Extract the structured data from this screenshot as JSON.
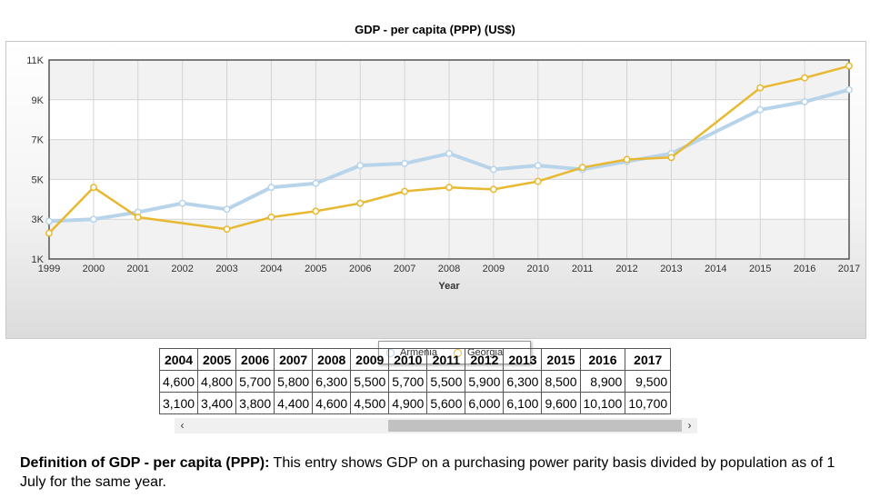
{
  "chart_data": {
    "type": "line",
    "title": "GDP - per capita (PPP) (US$)",
    "xlabel": "Year",
    "ylabel": "",
    "x": [
      1999,
      2000,
      2001,
      2002,
      2003,
      2004,
      2005,
      2006,
      2007,
      2008,
      2009,
      2010,
      2011,
      2012,
      2013,
      2014,
      2015,
      2016,
      2017
    ],
    "y_ticks": [
      {
        "value": 1000,
        "label": "1K"
      },
      {
        "value": 3000,
        "label": "3K"
      },
      {
        "value": 5000,
        "label": "5K"
      },
      {
        "value": 7000,
        "label": "7K"
      },
      {
        "value": 9000,
        "label": "9K"
      },
      {
        "value": 11000,
        "label": "11K"
      }
    ],
    "ylim": [
      1000,
      11000
    ],
    "grid": true,
    "legend": "bottom-center",
    "series": [
      {
        "name": "Armenia",
        "color": "#b8d4ea",
        "points": [
          [
            1999,
            2900
          ],
          [
            2000,
            3000
          ],
          [
            2001,
            3350
          ],
          [
            2002,
            3800
          ],
          [
            2003,
            3500
          ],
          [
            2004,
            4600
          ],
          [
            2005,
            4800
          ],
          [
            2006,
            5700
          ],
          [
            2007,
            5800
          ],
          [
            2008,
            6300
          ],
          [
            2009,
            5500
          ],
          [
            2010,
            5700
          ],
          [
            2011,
            5500
          ],
          [
            2012,
            5900
          ],
          [
            2013,
            6300
          ],
          [
            2015,
            8500
          ],
          [
            2016,
            8900
          ],
          [
            2017,
            9500
          ]
        ]
      },
      {
        "name": "Georgia",
        "color": "#e8b830",
        "points": [
          [
            1999,
            2300
          ],
          [
            2000,
            4600
          ],
          [
            2001,
            3100
          ],
          [
            2003,
            2500
          ],
          [
            2004,
            3100
          ],
          [
            2005,
            3400
          ],
          [
            2006,
            3800
          ],
          [
            2007,
            4400
          ],
          [
            2008,
            4600
          ],
          [
            2009,
            4500
          ],
          [
            2010,
            4900
          ],
          [
            2011,
            5600
          ],
          [
            2012,
            6000
          ],
          [
            2013,
            6100
          ],
          [
            2015,
            9600
          ],
          [
            2016,
            10100
          ],
          [
            2017,
            10700
          ]
        ]
      }
    ]
  },
  "table": {
    "headers": [
      "2004",
      "2005",
      "2006",
      "2007",
      "2008",
      "2009",
      "2010",
      "2011",
      "2012",
      "2013",
      "2015",
      "2016",
      "2017"
    ],
    "rows": [
      [
        "4,600",
        "4,800",
        "5,700",
        "5,800",
        "6,300",
        "5,500",
        "5,700",
        "5,500",
        "5,900",
        "6,300",
        "8,500",
        "8,900",
        "9,500"
      ],
      [
        "3,100",
        "3,400",
        "3,800",
        "4,400",
        "4,600",
        "4,500",
        "4,900",
        "5,600",
        "6,000",
        "6,100",
        "9,600",
        "10,100",
        "10,700"
      ]
    ]
  },
  "scrollbar": {
    "left_arrow": "‹",
    "right_arrow": "›"
  },
  "definition": {
    "term": "Definition of GDP - per capita (PPP):",
    "text": " This entry shows GDP on a purchasing power parity basis divided by population as of 1 July for the same year."
  }
}
